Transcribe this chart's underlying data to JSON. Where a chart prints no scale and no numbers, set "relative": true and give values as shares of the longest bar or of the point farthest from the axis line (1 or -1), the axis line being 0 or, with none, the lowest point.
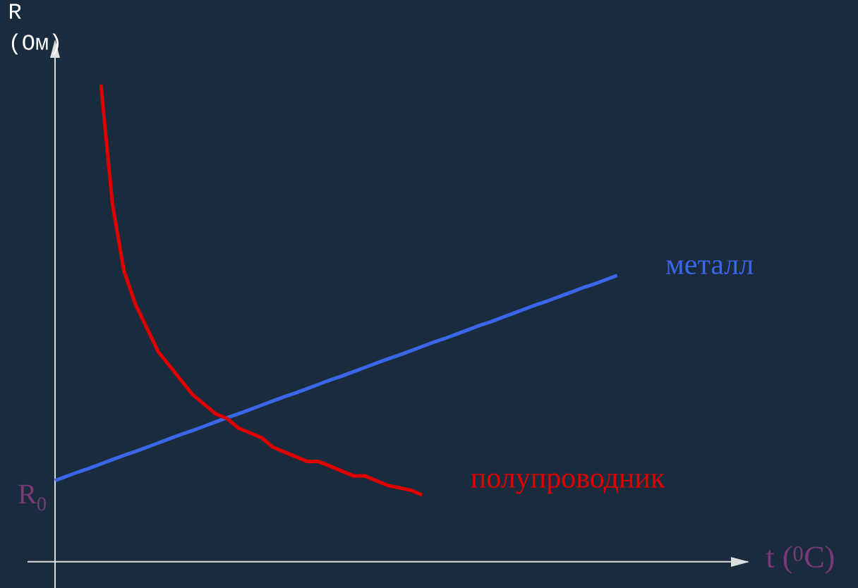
{
  "chart_data": {
    "type": "line",
    "relative": true,
    "xlabel": "t ($^{0}$C)",
    "ylabel": "R (Ом)",
    "categories": [
      null,
      null,
      null,
      null,
      null,
      null,
      null,
      null,
      null,
      null,
      null,
      null,
      null,
      null,
      null,
      null,
      null,
      null,
      null,
      null,
      null,
      null,
      null,
      null,
      null,
      null,
      null,
      null,
      null,
      null,
      null,
      null,
      null,
      null,
      null,
      null,
      null,
      null,
      null,
      null,
      null,
      null,
      null,
      null,
      null,
      null,
      null,
      null,
      null,
      null
    ],
    "series": [
      {
        "name": "металл",
        "color": "#3a66e8",
        "values": [
          0.17,
          0.179,
          0.188,
          0.196,
          0.205,
          0.214,
          0.223,
          0.231,
          0.24,
          0.249,
          0.258,
          0.267,
          0.275,
          0.284,
          0.293,
          0.302,
          0.31,
          0.319,
          0.328,
          0.337,
          0.346,
          0.354,
          0.363,
          0.372,
          0.381,
          0.389,
          0.398,
          0.407,
          0.416,
          0.425,
          0.433,
          0.442,
          0.451,
          0.46,
          0.468,
          0.477,
          0.486,
          0.495,
          0.503,
          0.512,
          0.521,
          0.53,
          0.539,
          0.547,
          0.556,
          0.565,
          0.574,
          0.582,
          0.591,
          0.6
        ]
      },
      {
        "name": "полупроводник",
        "color": "#e00000",
        "values": [
          null,
          null,
          null,
          null,
          1.0,
          0.75,
          0.61,
          0.54,
          0.49,
          0.44,
          0.41,
          0.38,
          0.35,
          0.33,
          0.31,
          0.3,
          0.28,
          0.27,
          0.26,
          0.24,
          0.23,
          0.22,
          0.21,
          0.21,
          0.2,
          0.19,
          0.18,
          0.18,
          0.17,
          0.16,
          0.155,
          0.15,
          0.14,
          null,
          null,
          null,
          null,
          null,
          null,
          null,
          null,
          null,
          null,
          null,
          null,
          null,
          null,
          null,
          null,
          null
        ]
      }
    ],
    "annotations": [
      "R$_{0}$"
    ]
  }
}
